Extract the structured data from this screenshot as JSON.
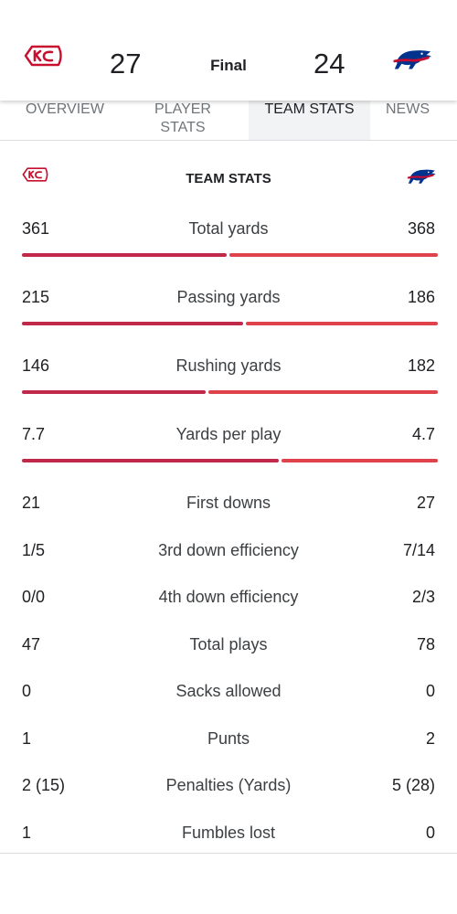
{
  "header": {
    "home_score": "27",
    "away_score": "24",
    "status": "Final",
    "home_logo": "chiefs-arrowhead-icon",
    "away_logo": "bills-buffalo-icon"
  },
  "tabs": [
    {
      "label": "OVERVIEW",
      "active": false
    },
    {
      "label": "PLAYER STATS",
      "active": false
    },
    {
      "label": "TEAM STATS",
      "active": true
    },
    {
      "label": "NEWS",
      "active": false
    }
  ],
  "section": {
    "title": "TEAM STATS"
  },
  "colors": {
    "home_bar": "#c0294a",
    "away_bar": "#e0424c"
  },
  "bar_stats": [
    {
      "label": "Total yards",
      "home": "361",
      "away": "368",
      "home_value": 361,
      "away_value": 368
    },
    {
      "label": "Passing yards",
      "home": "215",
      "away": "186",
      "home_value": 215,
      "away_value": 186
    },
    {
      "label": "Rushing yards",
      "home": "146",
      "away": "182",
      "home_value": 146,
      "away_value": 182
    },
    {
      "label": "Yards per play",
      "home": "7.7",
      "away": "4.7",
      "home_value": 7.7,
      "away_value": 4.7
    }
  ],
  "stats": [
    {
      "label": "First downs",
      "home": "21",
      "away": "27"
    },
    {
      "label": "3rd down efficiency",
      "home": "1/5",
      "away": "7/14"
    },
    {
      "label": "4th down efficiency",
      "home": "0/0",
      "away": "2/3"
    },
    {
      "label": "Total plays",
      "home": "47",
      "away": "78"
    },
    {
      "label": "Sacks allowed",
      "home": "0",
      "away": "0"
    },
    {
      "label": "Punts",
      "home": "1",
      "away": "2"
    },
    {
      "label": "Penalties (Yards)",
      "home": "2 (15)",
      "away": "5 (28)"
    },
    {
      "label": "Fumbles lost",
      "home": "1",
      "away": "0"
    }
  ]
}
